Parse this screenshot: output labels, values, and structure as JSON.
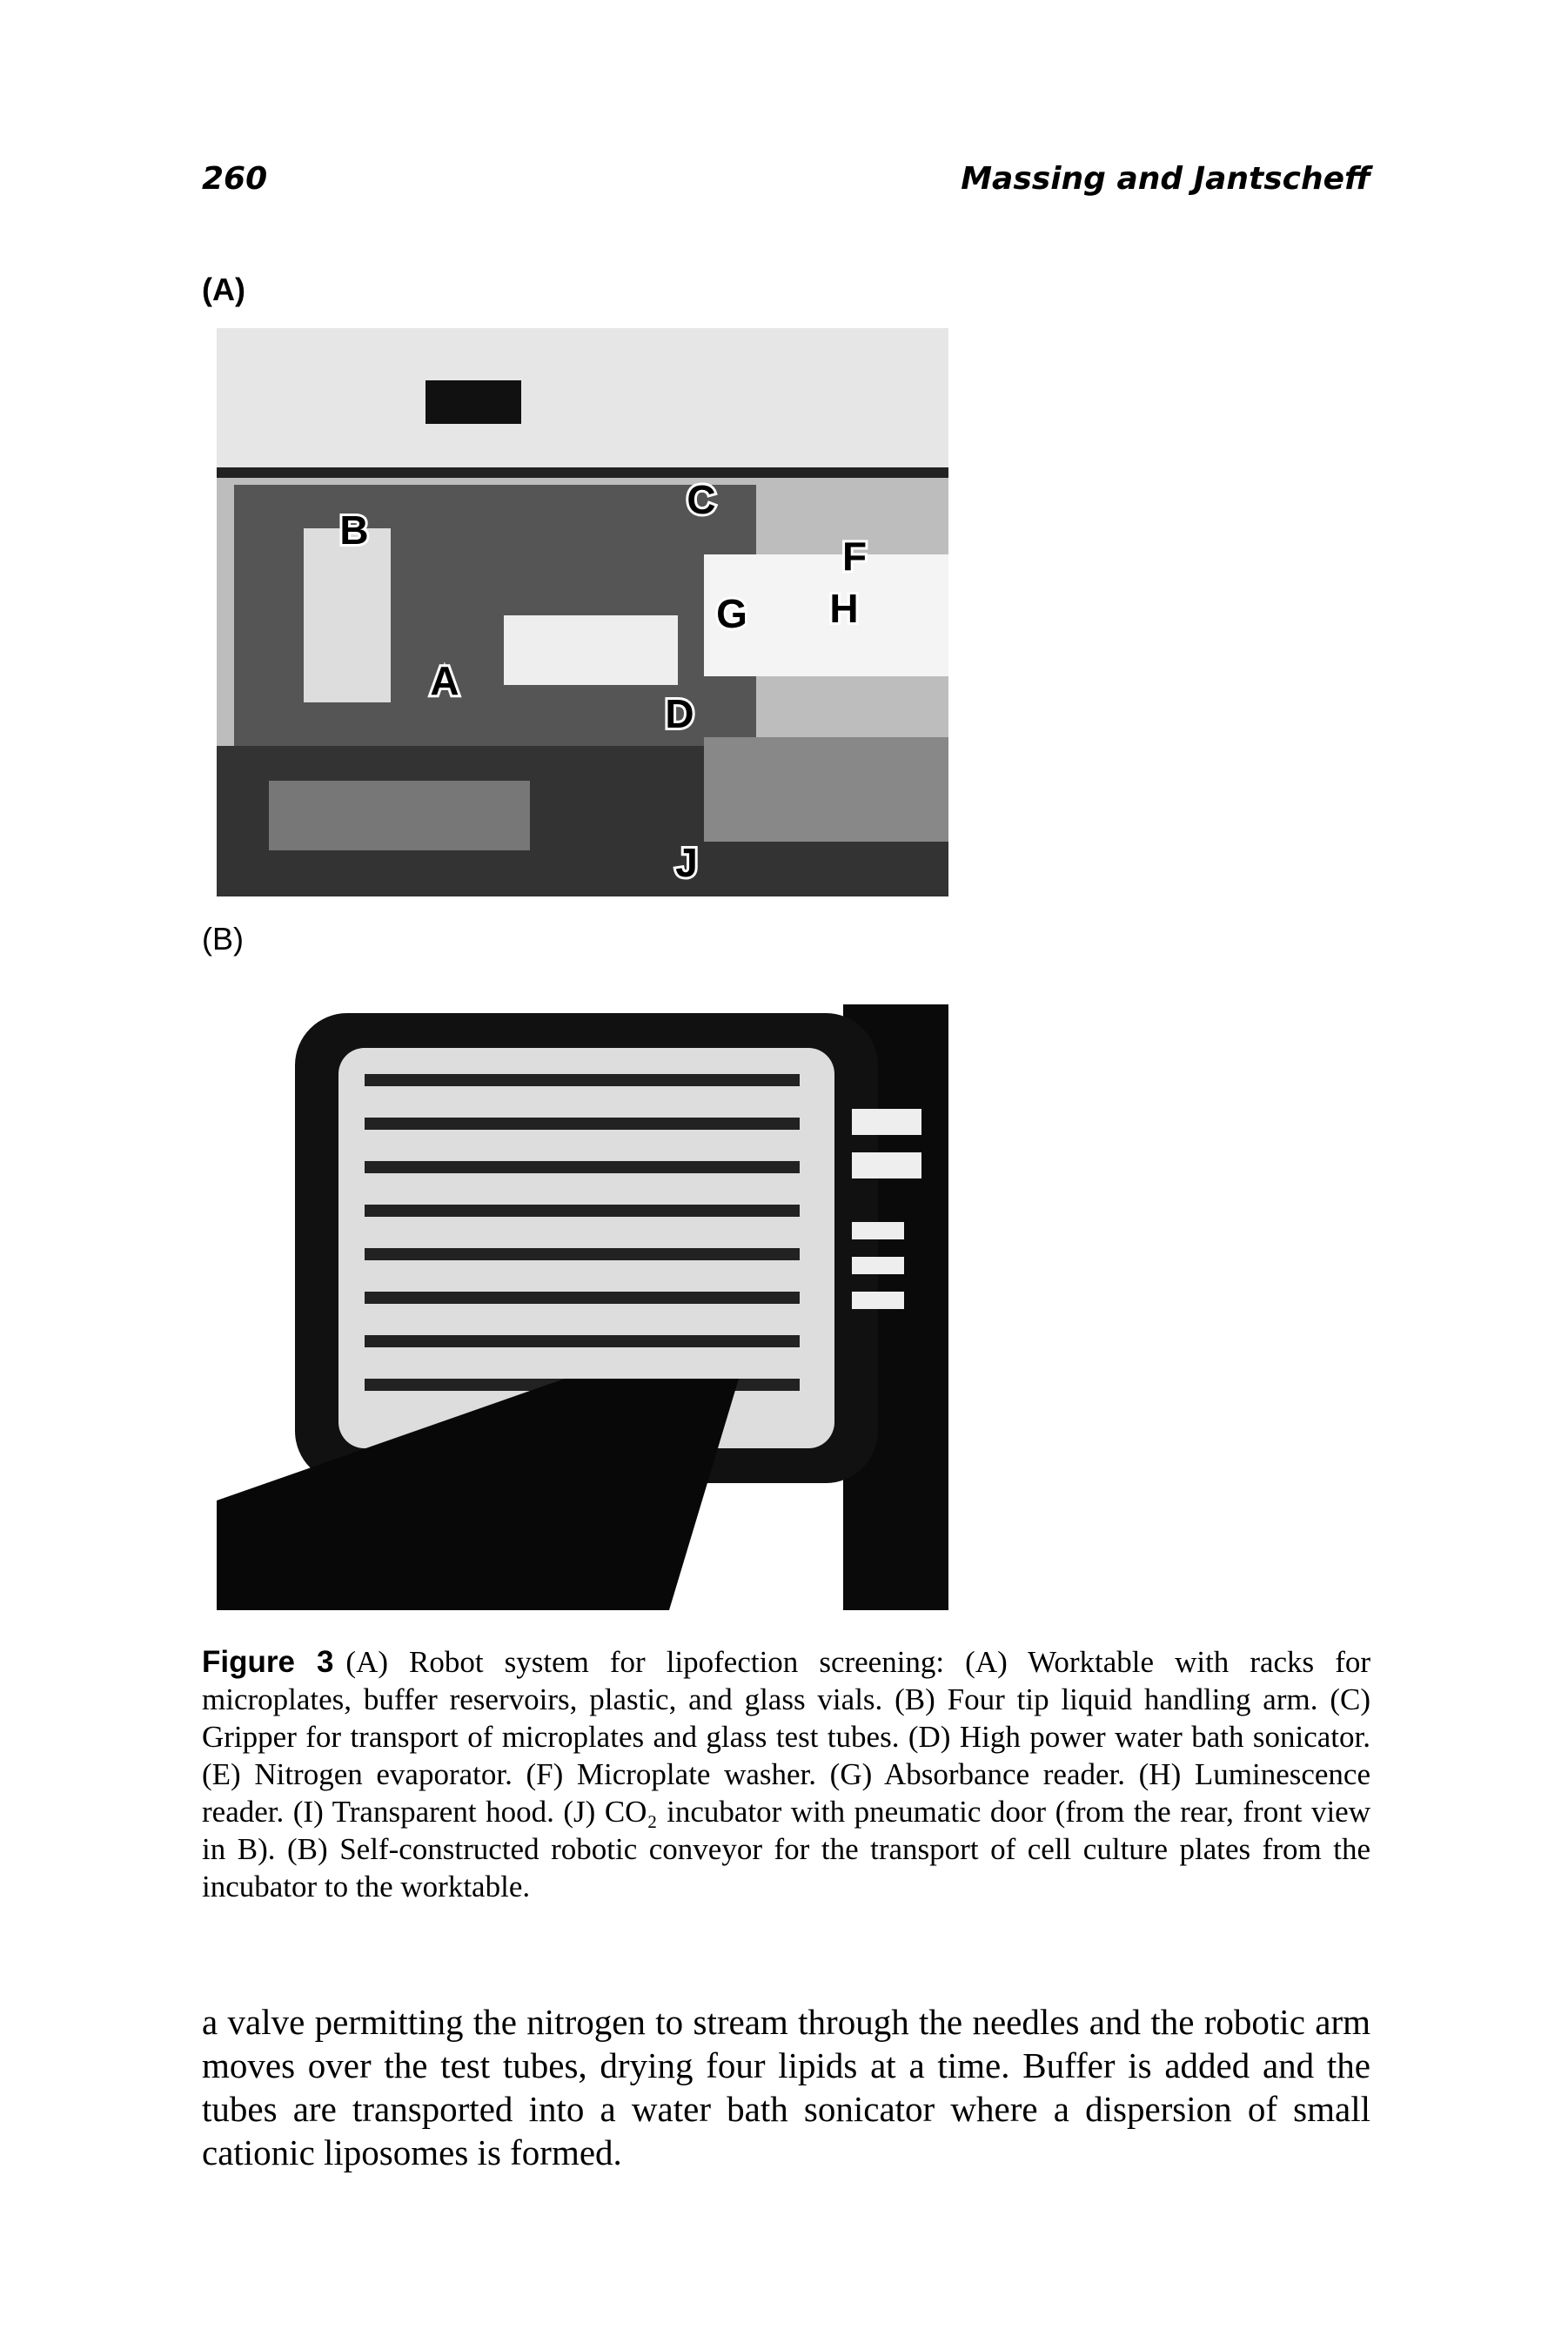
{
  "header": {
    "page_number": "260",
    "running_title": "Massing and Jantscheff"
  },
  "figure": {
    "panels": [
      {
        "label": "(A)",
        "callouts": [
          "B",
          "C",
          "F",
          "G",
          "H",
          "A",
          "D",
          "J"
        ]
      },
      {
        "label": "(B)"
      }
    ],
    "caption": {
      "label": "Figure 3",
      "text": "(A) Robot system for lipofection screening: (A) Worktable with racks for microplates, buffer reservoirs, plastic, and glass vials. (B) Four tip liquid handling arm. (C) Gripper for transport of microplates and glass test tubes. (D) High power water bath sonicator. (E) Nitrogen evaporator. (F) Microplate washer. (G) Absorbance reader. (H) Luminescence reader. (I) Transparent hood. (J) CO₂ incubator with pneumatic door (from the rear, front view in B). (B) Self-constructed robotic conveyor for the transport of cell culture plates from the incubator to the worktable."
    }
  },
  "body": {
    "paragraph": "a valve permitting the nitrogen to stream through the needles and the robotic arm moves over the test tubes, drying four lipids at a time. Buffer is added and the tubes are transported into a water bath sonicator where a dispersion of small cationic liposomes is formed."
  }
}
